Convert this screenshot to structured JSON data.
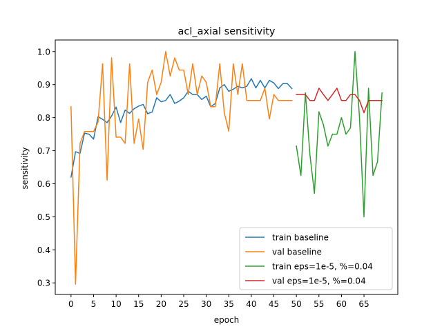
{
  "chart_data": {
    "type": "line",
    "title": "acl_axial sensitivity",
    "xlabel": "epoch",
    "ylabel": "sensitivity",
    "xlim": [
      -3.5,
      72.5
    ],
    "ylim": [
      0.265,
      1.035
    ],
    "xticks": [
      0,
      5,
      10,
      15,
      20,
      25,
      30,
      35,
      40,
      45,
      50,
      55,
      60,
      65
    ],
    "yticks": [
      0.3,
      0.4,
      0.5,
      0.6,
      0.7,
      0.8,
      0.9,
      1.0
    ],
    "ytick_labels": [
      "0.3",
      "0.4",
      "0.5",
      "0.6",
      "0.7",
      "0.8",
      "0.9",
      "1.0"
    ],
    "grid": false,
    "legend_position": "lower right",
    "series": [
      {
        "name": "train baseline",
        "color": "#1f77b4",
        "x": [
          0,
          1,
          2,
          3,
          4,
          5,
          6,
          7,
          8,
          9,
          10,
          11,
          12,
          13,
          14,
          15,
          16,
          17,
          18,
          19,
          20,
          21,
          22,
          23,
          24,
          25,
          26,
          27,
          28,
          29,
          30,
          31,
          32,
          33,
          34,
          35,
          36,
          37,
          38,
          39,
          40,
          41,
          42,
          43,
          44,
          45,
          46,
          47,
          48,
          49
        ],
        "y": [
          0.62,
          0.697,
          0.692,
          0.753,
          0.75,
          0.735,
          0.803,
          0.795,
          0.785,
          0.805,
          0.832,
          0.785,
          0.823,
          0.813,
          0.827,
          0.835,
          0.84,
          0.812,
          0.817,
          0.86,
          0.848,
          0.852,
          0.87,
          0.843,
          0.85,
          0.86,
          0.88,
          0.87,
          0.87,
          0.855,
          0.865,
          0.833,
          0.843,
          0.89,
          0.9,
          0.88,
          0.886,
          0.895,
          0.89,
          0.895,
          0.918,
          0.89,
          0.913,
          0.89,
          0.913,
          0.905,
          0.888,
          0.903,
          0.903,
          0.888
        ]
      },
      {
        "name": "val baseline",
        "color": "#ff7f0e",
        "x": [
          0,
          1,
          2,
          3,
          4,
          5,
          6,
          7,
          8,
          9,
          10,
          11,
          12,
          13,
          14,
          15,
          16,
          17,
          18,
          19,
          20,
          21,
          22,
          23,
          24,
          25,
          26,
          27,
          28,
          29,
          30,
          31,
          32,
          33,
          34,
          35,
          36,
          37,
          38,
          39,
          40,
          41,
          42,
          43,
          44,
          45,
          46,
          47,
          48,
          49
        ],
        "y": [
          0.833,
          0.296,
          0.722,
          0.758,
          0.758,
          0.758,
          0.787,
          0.963,
          0.611,
          0.981,
          0.741,
          0.741,
          0.722,
          0.963,
          0.722,
          0.796,
          0.704,
          0.907,
          0.944,
          0.87,
          0.907,
          1.0,
          0.926,
          0.981,
          0.944,
          0.944,
          0.87,
          0.963,
          0.87,
          0.926,
          0.907,
          0.833,
          0.833,
          0.963,
          0.815,
          0.759,
          0.963,
          0.87,
          0.963,
          0.852,
          0.852,
          0.852,
          0.852,
          0.889,
          0.796,
          0.87,
          0.852,
          0.852,
          0.852,
          0.852
        ]
      },
      {
        "name": "train eps=1e-5, %=0.04",
        "color": "#2ca02c",
        "x": [
          50,
          51,
          52,
          53,
          54,
          55,
          56,
          57,
          58,
          59,
          60,
          61,
          62,
          63,
          64,
          65,
          66,
          67,
          68,
          69
        ],
        "y": [
          0.714,
          0.625,
          0.875,
          0.688,
          0.571,
          0.818,
          0.778,
          0.714,
          0.75,
          0.75,
          0.8,
          0.75,
          0.769,
          1.0,
          0.8,
          0.5,
          0.889,
          0.625,
          0.667,
          0.875
        ]
      },
      {
        "name": "val eps=1e-5, %=0.04",
        "color": "#d62728",
        "x": [
          50,
          51,
          52,
          53,
          54,
          55,
          56,
          57,
          58,
          59,
          60,
          61,
          62,
          63,
          64,
          65,
          66,
          67,
          68,
          69
        ],
        "y": [
          0.87,
          0.87,
          0.87,
          0.852,
          0.852,
          0.889,
          0.87,
          0.852,
          0.87,
          0.889,
          0.852,
          0.852,
          0.87,
          0.87,
          0.852,
          0.815,
          0.852,
          0.852,
          0.852,
          0.852
        ]
      }
    ]
  }
}
